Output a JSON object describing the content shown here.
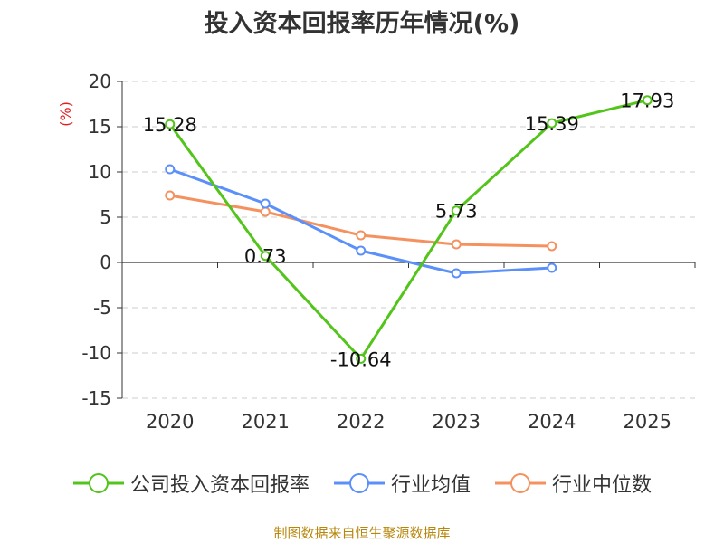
{
  "chart_data": {
    "type": "line",
    "title": "投入资本回报率历年情况(%)",
    "ylabel": "(%)",
    "categories": [
      "2020",
      "2021",
      "2022",
      "2023",
      "2024",
      "2025"
    ],
    "ylim": [
      -15,
      20
    ],
    "yticks": [
      20,
      15,
      10,
      5,
      0,
      -5,
      -10,
      -15
    ],
    "grid": true,
    "legend_position": "bottom",
    "series": [
      {
        "name": "公司投入资本回报率",
        "color": "#52c41a",
        "values": [
          15.28,
          0.73,
          -10.64,
          5.73,
          15.39,
          17.93
        ],
        "labels": [
          "15.28",
          "0.73",
          "-10.64",
          "5.73",
          "15.39",
          "17.93"
        ]
      },
      {
        "name": "行业均值",
        "color": "#5b8ff9",
        "values": [
          10.3,
          6.5,
          1.3,
          -1.2,
          -0.6,
          null
        ]
      },
      {
        "name": "行业中位数",
        "color": "#f4915e",
        "values": [
          7.4,
          5.6,
          3.0,
          2.0,
          1.8,
          null
        ]
      }
    ]
  },
  "source": "制图数据来自恒生聚源数据库"
}
